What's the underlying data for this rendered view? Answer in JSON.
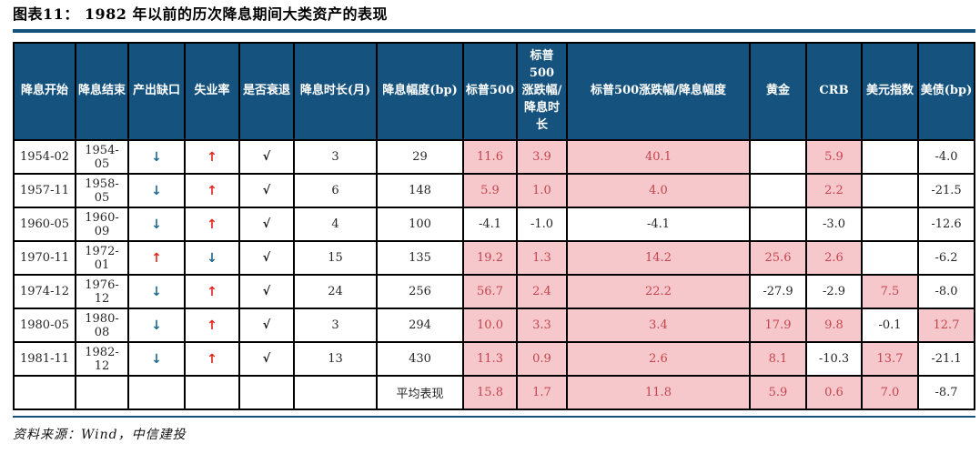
{
  "title": "图表11： 1982 年以前的历次降息期间大类资产的表现",
  "source_note": "资料来源：Wind，中信建投",
  "icons": {
    "down_arrow": "↓",
    "up_arrow": "↑",
    "check": "√"
  },
  "colors": {
    "header_bg": "#15537E",
    "rule": "#14517C",
    "highlight_bg": "#F7C8CB",
    "highlight_text": "#C3454E",
    "up_arrow_red": "#E02A20",
    "down_arrow_blue": "#1F6A8F"
  },
  "table": {
    "headers": [
      "降息开始",
      "降息结束",
      "产出缺口",
      "失业率",
      "是否衰退",
      "降息时长(月)",
      "降息幅度(bp)",
      "标普500",
      "标普500\n涨跌幅/\n降息时长",
      "标普500涨跌幅/降息幅度",
      "黄金",
      "CRB",
      "美元指数",
      "美债(bp)"
    ],
    "asset_keys": [
      "sp500",
      "sp500-chg-per-month",
      "sp500-chg-per-bp",
      "gold",
      "crb",
      "dollar-index",
      "ust-bp"
    ],
    "rows": [
      {
        "start": "1954-02",
        "end": "1954-05",
        "gap": "down",
        "unemployment": "up",
        "recession": "√",
        "months": "3",
        "bp": "29",
        "assets": [
          {
            "v": "11.6",
            "hl": true
          },
          {
            "v": "3.9",
            "hl": true
          },
          {
            "v": "40.1",
            "hl": true
          },
          {
            "v": "",
            "hl": false
          },
          {
            "v": "5.9",
            "hl": true
          },
          {
            "v": "",
            "hl": false
          },
          {
            "v": "-4.0",
            "hl": false
          }
        ]
      },
      {
        "start": "1957-11",
        "end": "1958-05",
        "gap": "down",
        "unemployment": "up",
        "recession": "√",
        "months": "6",
        "bp": "148",
        "assets": [
          {
            "v": "5.9",
            "hl": true
          },
          {
            "v": "1.0",
            "hl": true
          },
          {
            "v": "4.0",
            "hl": true
          },
          {
            "v": "",
            "hl": false
          },
          {
            "v": "2.2",
            "hl": true
          },
          {
            "v": "",
            "hl": false
          },
          {
            "v": "-21.5",
            "hl": false
          }
        ]
      },
      {
        "start": "1960-05",
        "end": "1960-09",
        "gap": "down",
        "unemployment": "up",
        "recession": "√",
        "months": "4",
        "bp": "100",
        "assets": [
          {
            "v": "-4.1",
            "hl": false
          },
          {
            "v": "-1.0",
            "hl": false
          },
          {
            "v": "-4.1",
            "hl": false
          },
          {
            "v": "",
            "hl": false
          },
          {
            "v": "-3.0",
            "hl": false
          },
          {
            "v": "",
            "hl": false
          },
          {
            "v": "-12.6",
            "hl": false
          }
        ]
      },
      {
        "start": "1970-11",
        "end": "1972-01",
        "gap": "up",
        "unemployment": "down",
        "recession": "√",
        "months": "15",
        "bp": "135",
        "assets": [
          {
            "v": "19.2",
            "hl": true
          },
          {
            "v": "1.3",
            "hl": true
          },
          {
            "v": "14.2",
            "hl": true
          },
          {
            "v": "25.6",
            "hl": true
          },
          {
            "v": "2.6",
            "hl": true
          },
          {
            "v": "",
            "hl": false
          },
          {
            "v": "-6.2",
            "hl": false
          }
        ]
      },
      {
        "start": "1974-12",
        "end": "1976-12",
        "gap": "down",
        "unemployment": "up",
        "recession": "√",
        "months": "24",
        "bp": "256",
        "assets": [
          {
            "v": "56.7",
            "hl": true
          },
          {
            "v": "2.4",
            "hl": true
          },
          {
            "v": "22.2",
            "hl": true
          },
          {
            "v": "-27.9",
            "hl": false
          },
          {
            "v": "-2.9",
            "hl": false
          },
          {
            "v": "7.5",
            "hl": true
          },
          {
            "v": "-8.0",
            "hl": false
          }
        ]
      },
      {
        "start": "1980-05",
        "end": "1980-08",
        "gap": "down",
        "unemployment": "up",
        "recession": "√",
        "months": "3",
        "bp": "294",
        "assets": [
          {
            "v": "10.0",
            "hl": true
          },
          {
            "v": "3.3",
            "hl": true
          },
          {
            "v": "3.4",
            "hl": true
          },
          {
            "v": "17.9",
            "hl": true
          },
          {
            "v": "9.8",
            "hl": true
          },
          {
            "v": "-0.1",
            "hl": false
          },
          {
            "v": "12.7",
            "hl": true
          }
        ]
      },
      {
        "start": "1981-11",
        "end": "1982-12",
        "gap": "down",
        "unemployment": "up",
        "recession": "√",
        "months": "13",
        "bp": "430",
        "assets": [
          {
            "v": "11.3",
            "hl": true
          },
          {
            "v": "0.9",
            "hl": true
          },
          {
            "v": "2.6",
            "hl": true
          },
          {
            "v": "8.1",
            "hl": true
          },
          {
            "v": "-10.3",
            "hl": false
          },
          {
            "v": "13.7",
            "hl": true
          },
          {
            "v": "-21.1",
            "hl": false
          }
        ]
      },
      {
        "start": "",
        "end": "",
        "gap": "",
        "unemployment": "",
        "recession": "",
        "months": "",
        "bp": "平均表现",
        "average": true,
        "assets": [
          {
            "v": "15.8",
            "hl": true
          },
          {
            "v": "1.7",
            "hl": true
          },
          {
            "v": "11.8",
            "hl": true
          },
          {
            "v": "5.9",
            "hl": true
          },
          {
            "v": "0.6",
            "hl": true
          },
          {
            "v": "7.0",
            "hl": true
          },
          {
            "v": "-8.7",
            "hl": false
          }
        ]
      }
    ]
  }
}
